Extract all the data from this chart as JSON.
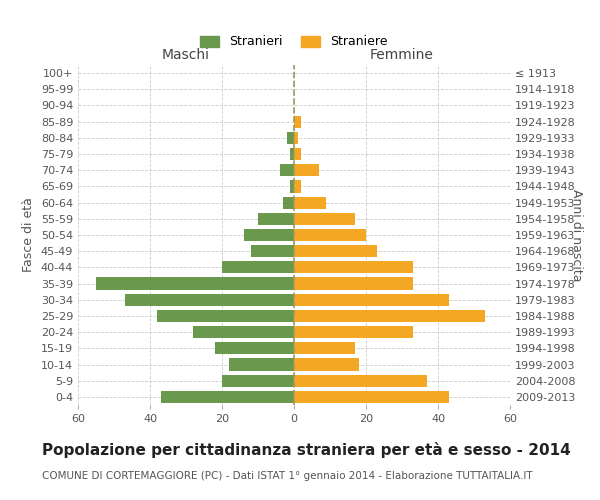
{
  "age_groups": [
    "0-4",
    "5-9",
    "10-14",
    "15-19",
    "20-24",
    "25-29",
    "30-34",
    "35-39",
    "40-44",
    "45-49",
    "50-54",
    "55-59",
    "60-64",
    "65-69",
    "70-74",
    "75-79",
    "80-84",
    "85-89",
    "90-94",
    "95-99",
    "100+"
  ],
  "birth_years": [
    "2009-2013",
    "2004-2008",
    "1999-2003",
    "1994-1998",
    "1989-1993",
    "1984-1988",
    "1979-1983",
    "1974-1978",
    "1969-1973",
    "1964-1968",
    "1959-1963",
    "1954-1958",
    "1949-1953",
    "1944-1948",
    "1939-1943",
    "1934-1938",
    "1929-1933",
    "1924-1928",
    "1919-1923",
    "1914-1918",
    "≤ 1913"
  ],
  "males": [
    37,
    20,
    18,
    22,
    28,
    38,
    47,
    55,
    20,
    12,
    14,
    10,
    3,
    1,
    4,
    1,
    2,
    0,
    0,
    0,
    0
  ],
  "females": [
    43,
    37,
    18,
    17,
    33,
    53,
    43,
    33,
    33,
    23,
    20,
    17,
    9,
    2,
    7,
    2,
    1,
    2,
    0,
    0,
    0
  ],
  "male_color": "#6a994e",
  "female_color": "#f4a723",
  "grid_color": "#cccccc",
  "center_line_color": "#999966",
  "title": "Popolazione per cittadinanza straniera per età e sesso - 2014",
  "subtitle": "COMUNE DI CORTEMAGGIORE (PC) - Dati ISTAT 1° gennaio 2014 - Elaborazione TUTTAITALIA.IT",
  "left_label": "Maschi",
  "right_label": "Femmine",
  "ylabel": "Fasce di età",
  "ylabel2": "Anni di nascita",
  "legend_male": "Stranieri",
  "legend_female": "Straniere",
  "xlim": 60,
  "title_fontsize": 11,
  "subtitle_fontsize": 7.5,
  "tick_fontsize": 8,
  "label_fontsize": 10,
  "legend_fontsize": 9,
  "ylabel_fontsize": 9
}
